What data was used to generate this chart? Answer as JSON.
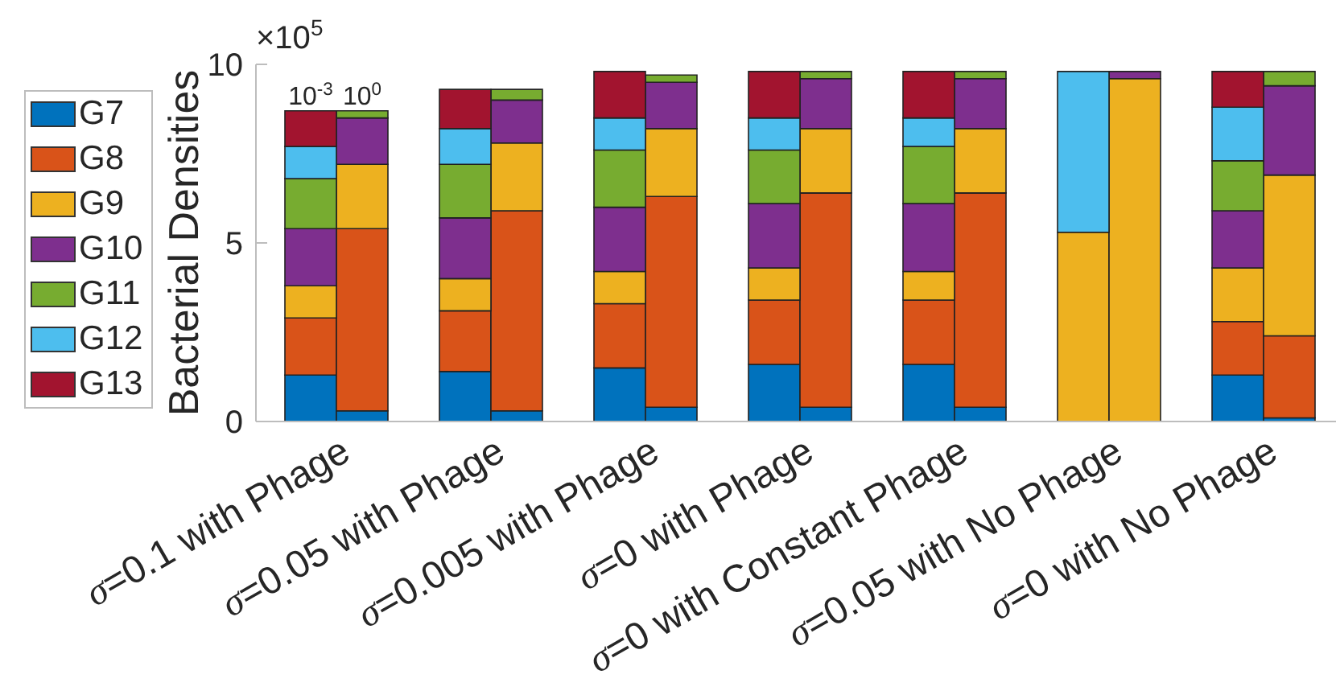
{
  "chart_data": {
    "type": "bar",
    "stacked": true,
    "ylabel": "Bacterial Densities",
    "categories": [
      null,
      "σ=0.1 with Phage",
      null,
      null,
      "σ=0.05 with Phage",
      null,
      null,
      "σ=0.005 with Phage",
      null,
      null,
      "σ=0 with Phage",
      null,
      null,
      "σ=0 with Constant Phage",
      null,
      null,
      "σ=0.05 with No Phage",
      null,
      null,
      "σ=0 with No Phage"
    ],
    "series": [
      {
        "name": "G7",
        "color": "#0072bd",
        "values": [
          1.3,
          0.3,
          null,
          1.4,
          0.3,
          null,
          1.5,
          0.4,
          null,
          1.6,
          0.4,
          null,
          1.6,
          0.4,
          null,
          0,
          0,
          null,
          1.3,
          0.1
        ]
      },
      {
        "name": "G8",
        "color": "#d95319",
        "values": [
          1.6,
          5.1,
          null,
          1.7,
          5.6,
          null,
          1.8,
          5.9,
          null,
          1.8,
          6.0,
          null,
          1.8,
          6.0,
          null,
          0,
          0,
          null,
          1.5,
          2.3
        ]
      },
      {
        "name": "G9",
        "color": "#edb120",
        "values": [
          0.9,
          1.8,
          null,
          0.9,
          1.9,
          null,
          0.9,
          1.9,
          null,
          0.9,
          1.8,
          null,
          0.8,
          1.8,
          null,
          5.3,
          9.6,
          null,
          1.5,
          4.5
        ]
      },
      {
        "name": "G10",
        "color": "#7e2f8e",
        "values": [
          1.6,
          1.3,
          null,
          1.7,
          1.2,
          null,
          1.8,
          1.3,
          null,
          1.8,
          1.4,
          null,
          1.9,
          1.4,
          null,
          0,
          0.2,
          null,
          1.6,
          2.5
        ]
      },
      {
        "name": "G11",
        "color": "#77ac30",
        "values": [
          1.4,
          0.2,
          null,
          1.5,
          0.3,
          null,
          1.6,
          0.2,
          null,
          1.5,
          0.2,
          null,
          1.6,
          0.2,
          null,
          0,
          0,
          null,
          1.4,
          0.4
        ]
      },
      {
        "name": "G12",
        "color": "#4dbeee",
        "values": [
          0.9,
          0,
          null,
          1.0,
          0,
          null,
          0.9,
          0,
          null,
          0.9,
          0,
          null,
          0.8,
          0,
          null,
          4.5,
          0,
          null,
          1.5,
          0
        ]
      },
      {
        "name": "G13",
        "color": "#a2142f",
        "values": [
          1.0,
          0,
          null,
          1.1,
          0,
          null,
          1.3,
          0,
          null,
          1.3,
          0,
          null,
          1.3,
          0,
          null,
          0,
          0,
          null,
          1.0,
          0
        ]
      }
    ],
    "ylim": [
      0,
      10
    ],
    "yticks": [
      0,
      5,
      10
    ],
    "legend": "left",
    "annotations": [
      "×10$^{5}$",
      {
        "text": "10$^{-3}$",
        "y": 8.7
      },
      {
        "text": "10$^{0}$",
        "x": "σ=0.1 with Phage",
        "y": 8.7
      }
    ]
  }
}
